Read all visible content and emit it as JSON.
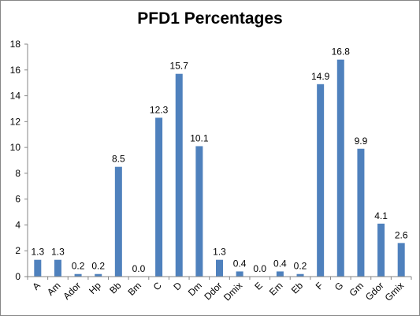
{
  "chart_data": {
    "type": "bar",
    "title": "PFD1 Percentages",
    "categories": [
      "A",
      "Am",
      "Ador",
      "Hp",
      "Bb",
      "Bm",
      "C",
      "D",
      "Dm",
      "Ddor",
      "Dmix",
      "E",
      "Em",
      "Eb",
      "F",
      "G",
      "Gm",
      "Gdor",
      "Gmix"
    ],
    "values": [
      1.3,
      1.3,
      0.2,
      0.2,
      8.5,
      0.0,
      12.3,
      15.7,
      10.1,
      1.3,
      0.4,
      0.0,
      0.4,
      0.2,
      14.9,
      16.8,
      9.9,
      4.1,
      2.6
    ],
    "data_labels": [
      "1.3",
      "1.3",
      "0.2",
      "0.2",
      "8.5",
      "0.0",
      "12.3",
      "15.7",
      "10.1",
      "1.3",
      "0.4",
      "0.0",
      "0.4",
      "0.2",
      "14.9",
      "16.8",
      "9.9",
      "4.1",
      "2.6"
    ],
    "ylim": [
      0,
      18
    ],
    "yticks": [
      "0",
      "2",
      "4",
      "6",
      "8",
      "10",
      "12",
      "14",
      "16",
      "18"
    ],
    "xlabel": "",
    "ylabel": "",
    "grid": false,
    "legend": "none",
    "bar_color": "#4f81bd"
  }
}
